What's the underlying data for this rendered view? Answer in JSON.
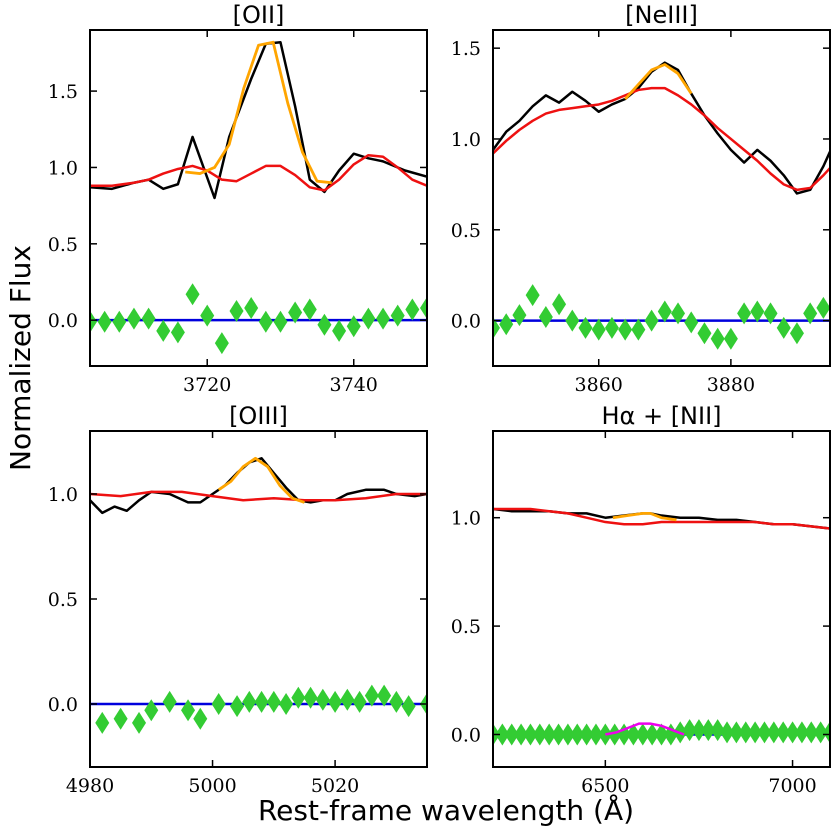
{
  "figure": {
    "ylabel": "Normalized Flux",
    "xlabel": "Rest-frame wavelength (Å)"
  },
  "colors": {
    "data": "#000000",
    "model": "#ee1111",
    "fit": "#ffa500",
    "residual": "#33cc33",
    "zero": "#0000dd",
    "extra": "#ee00ee"
  },
  "chart_data": [
    {
      "type": "line",
      "title": "[OII]",
      "xlim": [
        3704,
        3750
      ],
      "ylim": [
        -0.3,
        1.9
      ],
      "xticks": [
        3720,
        3740
      ],
      "yticks": [
        0.0,
        0.5,
        1.0,
        1.5
      ],
      "ytick_labels": [
        "0.0",
        "0.5",
        "1.0",
        "1.5"
      ],
      "series": [
        {
          "name": "data",
          "x": [
            3704,
            3707,
            3710,
            3712,
            3714,
            3716,
            3718,
            3721,
            3723,
            3726,
            3728,
            3730,
            3732,
            3734,
            3736,
            3738,
            3740,
            3742,
            3744,
            3747,
            3750
          ],
          "y": [
            0.87,
            0.86,
            0.9,
            0.92,
            0.86,
            0.89,
            1.2,
            0.8,
            1.2,
            1.58,
            1.81,
            1.82,
            1.4,
            0.92,
            0.84,
            0.98,
            1.09,
            1.06,
            1.04,
            0.98,
            0.94
          ]
        },
        {
          "name": "model",
          "x": [
            3704,
            3707,
            3710,
            3712,
            3714,
            3716,
            3718,
            3720,
            3722,
            3724,
            3726,
            3728,
            3730,
            3732,
            3734,
            3736,
            3738,
            3740,
            3742,
            3744,
            3746,
            3748,
            3750
          ],
          "y": [
            0.88,
            0.88,
            0.9,
            0.92,
            0.96,
            0.99,
            1.01,
            0.98,
            0.92,
            0.91,
            0.96,
            1.01,
            1.01,
            0.95,
            0.87,
            0.85,
            0.92,
            1.02,
            1.08,
            1.07,
            1.0,
            0.92,
            0.88
          ]
        },
        {
          "name": "fit",
          "x": [
            3717,
            3719,
            3721,
            3723,
            3725,
            3727,
            3729,
            3731,
            3733,
            3735,
            3737
          ],
          "y": [
            0.97,
            0.96,
            1.0,
            1.15,
            1.52,
            1.8,
            1.82,
            1.42,
            1.1,
            0.91,
            0.9
          ]
        }
      ],
      "residuals": {
        "x": [
          3704,
          3706,
          3708,
          3710,
          3712,
          3714,
          3716,
          3718,
          3720,
          3722,
          3724,
          3726,
          3728,
          3730,
          3732,
          3734,
          3736,
          3738,
          3740,
          3742,
          3744,
          3746,
          3748,
          3750
        ],
        "y": [
          -0.01,
          -0.01,
          -0.01,
          0.01,
          0.01,
          -0.07,
          -0.08,
          0.17,
          0.03,
          -0.15,
          0.06,
          0.08,
          -0.01,
          -0.01,
          0.05,
          0.07,
          -0.03,
          -0.07,
          -0.04,
          0.01,
          0.01,
          0.03,
          0.07,
          0.08
        ]
      },
      "extra_line": null
    },
    {
      "type": "line",
      "title": "[NeIII]",
      "xlim": [
        3844,
        3895
      ],
      "ylim": [
        -0.25,
        1.6
      ],
      "xticks": [
        3860,
        3880
      ],
      "yticks": [
        0.0,
        0.5,
        1.0,
        1.5
      ],
      "ytick_labels": [
        "0.0",
        "0.5",
        "1.0",
        "1.5"
      ],
      "series": [
        {
          "name": "data",
          "x": [
            3844,
            3846,
            3848,
            3850,
            3852,
            3854,
            3856,
            3858,
            3860,
            3862,
            3864,
            3866,
            3868,
            3870,
            3872,
            3874,
            3876,
            3878,
            3880,
            3882,
            3884,
            3886,
            3888,
            3890,
            3892,
            3894,
            3895
          ],
          "y": [
            0.94,
            1.04,
            1.1,
            1.18,
            1.24,
            1.2,
            1.26,
            1.21,
            1.15,
            1.19,
            1.22,
            1.28,
            1.37,
            1.42,
            1.38,
            1.25,
            1.13,
            1.03,
            0.94,
            0.87,
            0.94,
            0.88,
            0.8,
            0.7,
            0.72,
            0.85,
            0.93
          ]
        },
        {
          "name": "model",
          "x": [
            3844,
            3846,
            3848,
            3850,
            3852,
            3854,
            3856,
            3858,
            3860,
            3862,
            3864,
            3866,
            3868,
            3870,
            3872,
            3874,
            3876,
            3878,
            3880,
            3882,
            3884,
            3886,
            3888,
            3890,
            3892,
            3894,
            3895
          ],
          "y": [
            0.92,
            0.99,
            1.05,
            1.1,
            1.14,
            1.16,
            1.17,
            1.18,
            1.19,
            1.21,
            1.24,
            1.27,
            1.28,
            1.28,
            1.24,
            1.19,
            1.13,
            1.06,
            1.0,
            0.94,
            0.88,
            0.81,
            0.75,
            0.72,
            0.73,
            0.8,
            0.84
          ]
        },
        {
          "name": "fit",
          "x": [
            3864,
            3866,
            3868,
            3870,
            3872,
            3874
          ],
          "y": [
            1.22,
            1.3,
            1.38,
            1.41,
            1.36,
            1.25
          ]
        }
      ],
      "residuals": {
        "x": [
          3844,
          3846,
          3848,
          3850,
          3852,
          3854,
          3856,
          3858,
          3860,
          3862,
          3864,
          3866,
          3868,
          3870,
          3872,
          3874,
          3876,
          3878,
          3880,
          3882,
          3884,
          3886,
          3888,
          3890,
          3892,
          3894
        ],
        "y": [
          -0.04,
          -0.02,
          0.03,
          0.14,
          0.02,
          0.09,
          0.0,
          -0.04,
          -0.05,
          -0.04,
          -0.05,
          -0.05,
          0.0,
          0.05,
          0.04,
          -0.01,
          -0.07,
          -0.1,
          -0.1,
          0.04,
          0.05,
          0.04,
          -0.04,
          -0.07,
          0.04,
          0.07
        ]
      },
      "extra_line": null
    },
    {
      "type": "line",
      "title": "[OIII]",
      "xlim": [
        4980,
        5035
      ],
      "ylim": [
        -0.3,
        1.3
      ],
      "xticks": [
        4980,
        5000,
        5020
      ],
      "yticks": [
        0.0,
        0.5,
        1.0
      ],
      "ytick_labels": [
        "0.0",
        "0.5",
        "1.0"
      ],
      "series": [
        {
          "name": "data",
          "x": [
            4980,
            4982,
            4984,
            4986,
            4988,
            4990,
            4993,
            4996,
            4998,
            5000,
            5002,
            5004,
            5006,
            5008,
            5010,
            5012,
            5014,
            5016,
            5018,
            5020,
            5022,
            5025,
            5028,
            5030,
            5033,
            5035
          ],
          "y": [
            0.97,
            0.91,
            0.94,
            0.92,
            0.97,
            1.01,
            1.0,
            0.96,
            0.96,
            1.0,
            1.04,
            1.1,
            1.15,
            1.17,
            1.1,
            1.03,
            0.97,
            0.96,
            0.97,
            0.97,
            1.0,
            1.02,
            1.02,
            1.0,
            0.99,
            1.0
          ]
        },
        {
          "name": "model",
          "x": [
            4980,
            4985,
            4990,
            4995,
            5000,
            5005,
            5010,
            5015,
            5020,
            5025,
            5030,
            5035
          ],
          "y": [
            1.0,
            0.99,
            1.01,
            1.01,
            0.99,
            0.97,
            0.98,
            0.97,
            0.97,
            0.98,
            1.0,
            1.0
          ]
        },
        {
          "name": "fit",
          "x": [
            5001,
            5003,
            5005,
            5007,
            5009,
            5011,
            5013,
            5015
          ],
          "y": [
            1.02,
            1.06,
            1.13,
            1.17,
            1.13,
            1.04,
            0.98,
            0.96
          ]
        }
      ],
      "residuals": {
        "x": [
          4982,
          4985,
          4988,
          4990,
          4993,
          4996,
          4998,
          5001,
          5004,
          5006,
          5008,
          5010,
          5012,
          5014,
          5016,
          5018,
          5020,
          5022,
          5024,
          5026,
          5028,
          5030,
          5032,
          5035
        ],
        "y": [
          -0.09,
          -0.07,
          -0.09,
          -0.03,
          0.01,
          -0.03,
          -0.07,
          0.0,
          -0.01,
          0.01,
          0.01,
          0.01,
          0.0,
          0.03,
          0.03,
          0.02,
          0.01,
          0.02,
          0.01,
          0.04,
          0.04,
          0.01,
          -0.01,
          0.0
        ]
      },
      "extra_line": null
    },
    {
      "type": "line",
      "title": "Hα + [NII]",
      "xlim": [
        6200,
        7100
      ],
      "ylim": [
        -0.15,
        1.4
      ],
      "xticks": [
        6500,
        7000
      ],
      "yticks": [
        0.0,
        0.5,
        1.0
      ],
      "ytick_labels": [
        "0.0",
        "0.5",
        "1.0"
      ],
      "series": [
        {
          "name": "data",
          "x": [
            6200,
            6250,
            6300,
            6350,
            6400,
            6450,
            6500,
            6550,
            6600,
            6620,
            6650,
            6700,
            6750,
            6800,
            6850,
            6900,
            6950,
            7000,
            7050,
            7100
          ],
          "y": [
            1.04,
            1.03,
            1.03,
            1.03,
            1.02,
            1.02,
            1.0,
            1.01,
            1.02,
            1.02,
            1.01,
            1.0,
            1.0,
            0.99,
            0.99,
            0.98,
            0.97,
            0.97,
            0.96,
            0.95
          ]
        },
        {
          "name": "model",
          "x": [
            6200,
            6250,
            6300,
            6350,
            6400,
            6450,
            6500,
            6550,
            6600,
            6650,
            6700,
            6750,
            6800,
            6850,
            6900,
            6950,
            7000,
            7050,
            7100
          ],
          "y": [
            1.04,
            1.04,
            1.04,
            1.03,
            1.02,
            1.0,
            0.98,
            0.97,
            0.97,
            0.98,
            0.98,
            0.98,
            0.98,
            0.98,
            0.98,
            0.97,
            0.97,
            0.96,
            0.95
          ]
        },
        {
          "name": "fit",
          "x": [
            6520,
            6560,
            6600,
            6620,
            6650,
            6690
          ],
          "y": [
            1.0,
            1.01,
            1.02,
            1.02,
            1.0,
            0.99
          ]
        }
      ],
      "residuals": {
        "x": [
          6200,
          6225,
          6250,
          6275,
          6300,
          6325,
          6350,
          6375,
          6400,
          6425,
          6450,
          6475,
          6500,
          6525,
          6550,
          6575,
          6600,
          6625,
          6650,
          6675,
          6700,
          6725,
          6750,
          6775,
          6800,
          6825,
          6850,
          6875,
          6900,
          6925,
          6950,
          6975,
          7000,
          7025,
          7050,
          7075,
          7100
        ],
        "y": [
          0.0,
          0.0,
          0.0,
          0.0,
          0.0,
          0.0,
          0.0,
          0.0,
          0.0,
          0.0,
          0.0,
          0.0,
          0.0,
          0.0,
          0.0,
          0.0,
          0.0,
          0.0,
          0.0,
          0.0,
          0.01,
          0.02,
          0.02,
          0.02,
          0.02,
          0.01,
          0.01,
          0.01,
          0.01,
          0.01,
          0.01,
          0.01,
          0.01,
          0.01,
          0.01,
          0.01,
          0.01
        ]
      },
      "extra_line": {
        "x": [
          6500,
          6530,
          6560,
          6590,
          6620,
          6650,
          6680,
          6710
        ],
        "y": [
          0.0,
          0.01,
          0.03,
          0.05,
          0.05,
          0.04,
          0.02,
          0.0
        ]
      }
    }
  ]
}
